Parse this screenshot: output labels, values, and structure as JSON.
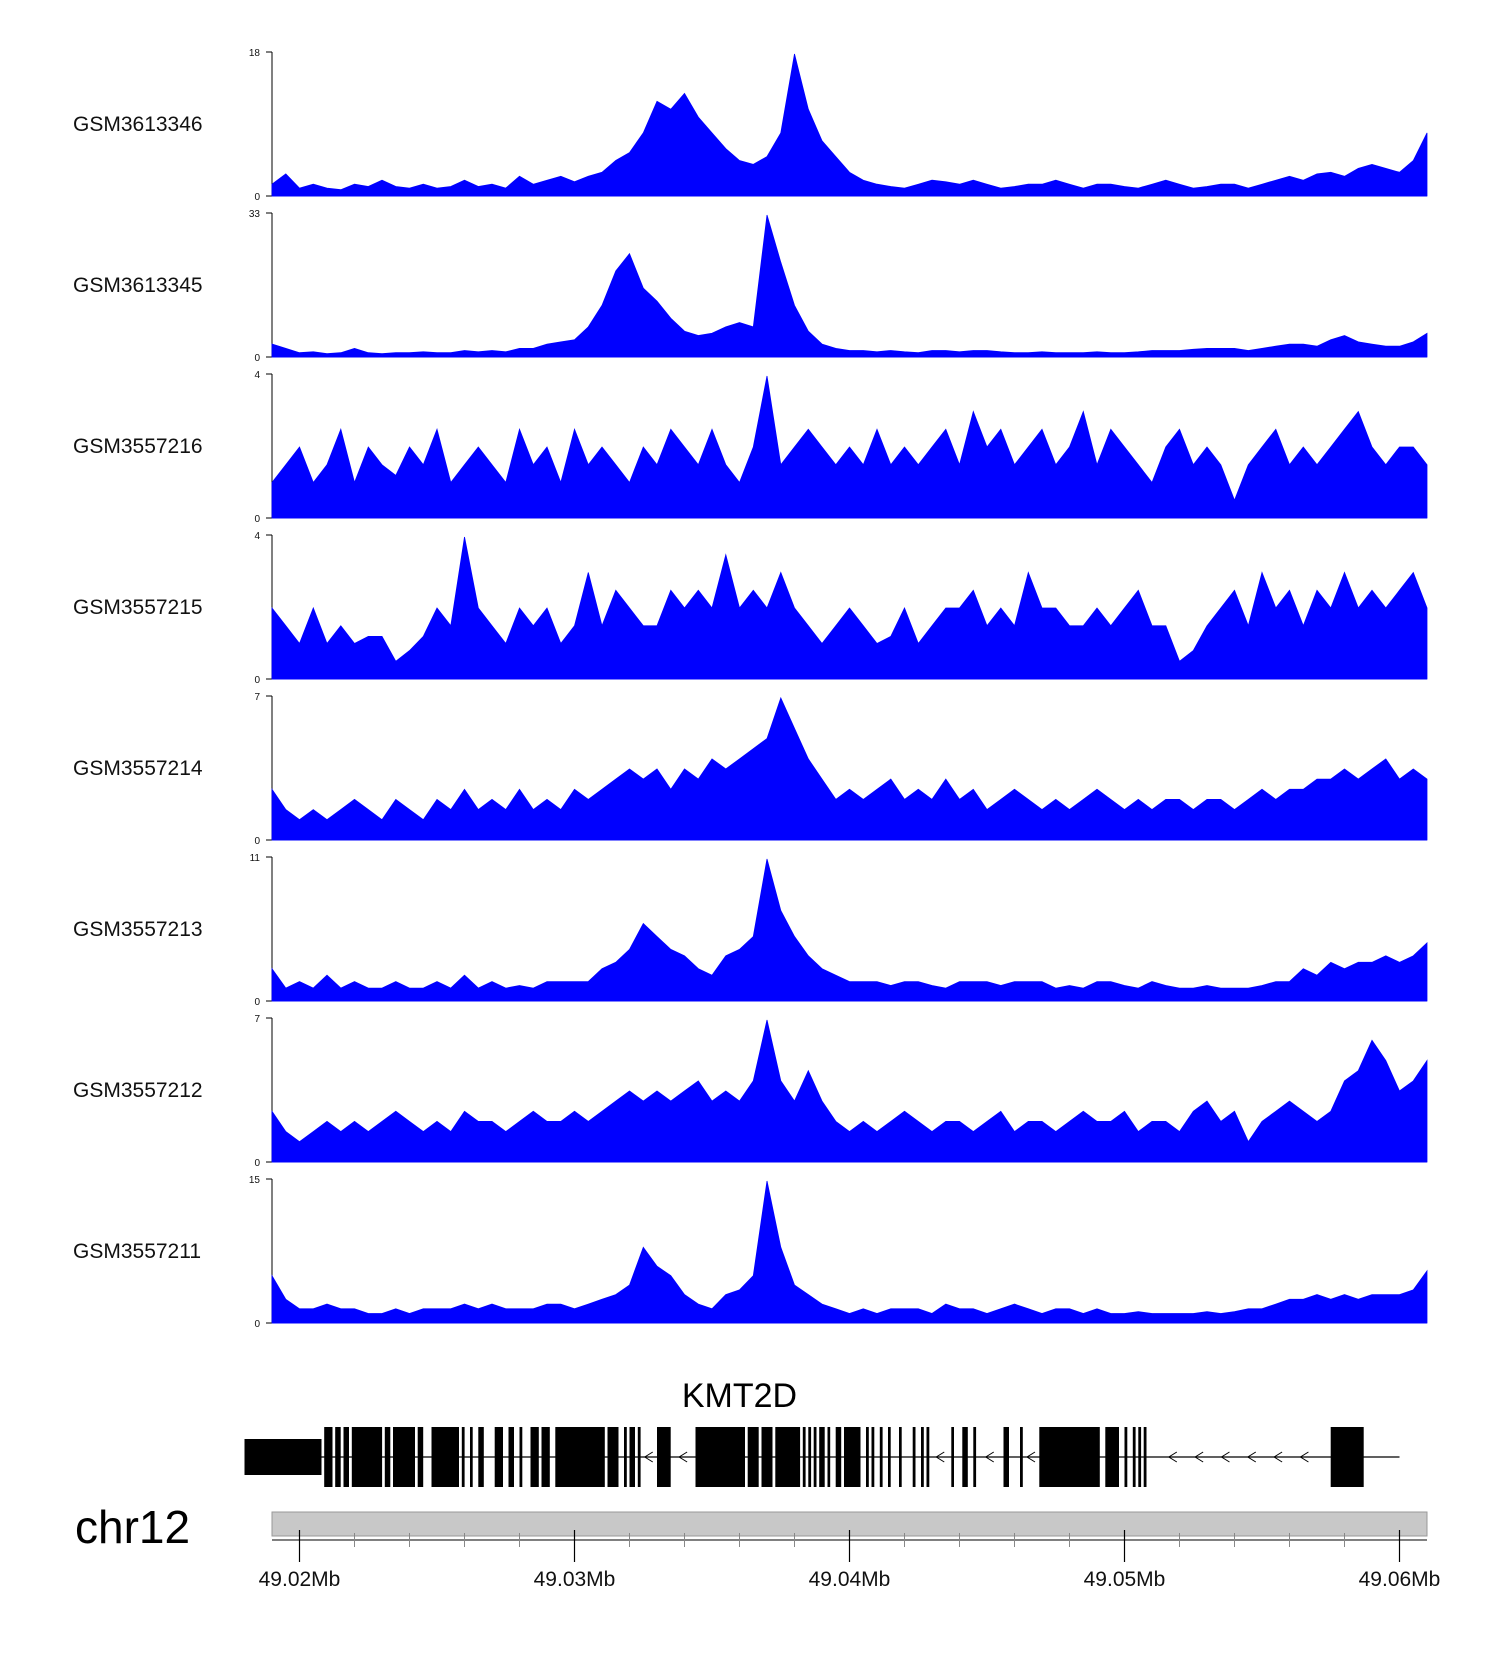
{
  "chart_data": {
    "type": "area",
    "title": "",
    "xlabel": "",
    "ylabel": "",
    "region": {
      "chromosome": "chr12",
      "start_mb": 49.019,
      "end_mb": 49.061
    },
    "fill_color": "#0000ff",
    "series": [
      {
        "name": "GSM3613346",
        "ylim": [
          0,
          18
        ],
        "ymax_label": "18",
        "ymin_label": "0",
        "values": [
          1.5,
          2.8,
          1.0,
          1.5,
          1.0,
          0.8,
          1.5,
          1.2,
          2.0,
          1.2,
          1.0,
          1.5,
          1.0,
          1.2,
          2.0,
          1.2,
          1.5,
          1.0,
          2.5,
          1.5,
          2.0,
          2.5,
          1.8,
          2.5,
          3.0,
          4.5,
          5.5,
          8.0,
          12.0,
          11.0,
          13.0,
          10.0,
          8.0,
          6.0,
          4.5,
          4.0,
          5.0,
          8.0,
          18.0,
          11.0,
          7.0,
          5.0,
          3.0,
          2.0,
          1.5,
          1.2,
          1.0,
          1.5,
          2.0,
          1.8,
          1.5,
          2.0,
          1.5,
          1.0,
          1.2,
          1.5,
          1.5,
          2.0,
          1.5,
          1.0,
          1.5,
          1.5,
          1.2,
          1.0,
          1.5,
          2.0,
          1.5,
          1.0,
          1.2,
          1.5,
          1.5,
          1.0,
          1.5,
          2.0,
          2.5,
          2.0,
          2.8,
          3.0,
          2.5,
          3.5,
          4.0,
          3.5,
          3.0,
          4.5,
          8.0
        ]
      },
      {
        "name": "GSM3613345",
        "ylim": [
          0,
          33
        ],
        "ymax_label": "33",
        "ymin_label": "0",
        "values": [
          3.0,
          2.0,
          1.0,
          1.2,
          0.8,
          1.0,
          2.0,
          1.0,
          0.8,
          1.0,
          1.0,
          1.2,
          1.0,
          1.0,
          1.5,
          1.2,
          1.5,
          1.2,
          2.0,
          2.0,
          3.0,
          3.5,
          4.0,
          7.0,
          12.0,
          20.0,
          24.0,
          16.0,
          13.0,
          9.0,
          6.0,
          5.0,
          5.5,
          7.0,
          8.0,
          7.0,
          33.0,
          22.0,
          12.0,
          6.0,
          3.0,
          2.0,
          1.5,
          1.5,
          1.2,
          1.5,
          1.2,
          1.0,
          1.5,
          1.5,
          1.2,
          1.5,
          1.5,
          1.2,
          1.0,
          1.0,
          1.2,
          1.0,
          1.0,
          1.0,
          1.2,
          1.0,
          1.0,
          1.2,
          1.5,
          1.5,
          1.5,
          1.8,
          2.0,
          2.0,
          2.0,
          1.5,
          2.0,
          2.5,
          3.0,
          3.0,
          2.5,
          4.0,
          5.0,
          3.5,
          3.0,
          2.5,
          2.5,
          3.5,
          5.5
        ]
      },
      {
        "name": "GSM3557216",
        "ylim": [
          0,
          4
        ],
        "ymax_label": "4",
        "ymin_label": "0",
        "values": [
          1.0,
          1.5,
          2.0,
          1.0,
          1.5,
          2.5,
          1.0,
          2.0,
          1.5,
          1.2,
          2.0,
          1.5,
          2.5,
          1.0,
          1.5,
          2.0,
          1.5,
          1.0,
          2.5,
          1.5,
          2.0,
          1.0,
          2.5,
          1.5,
          2.0,
          1.5,
          1.0,
          2.0,
          1.5,
          2.5,
          2.0,
          1.5,
          2.5,
          1.5,
          1.0,
          2.0,
          4.0,
          1.5,
          2.0,
          2.5,
          2.0,
          1.5,
          2.0,
          1.5,
          2.5,
          1.5,
          2.0,
          1.5,
          2.0,
          2.5,
          1.5,
          3.0,
          2.0,
          2.5,
          1.5,
          2.0,
          2.5,
          1.5,
          2.0,
          3.0,
          1.5,
          2.5,
          2.0,
          1.5,
          1.0,
          2.0,
          2.5,
          1.5,
          2.0,
          1.5,
          0.5,
          1.5,
          2.0,
          2.5,
          1.5,
          2.0,
          1.5,
          2.0,
          2.5,
          3.0,
          2.0,
          1.5,
          2.0,
          2.0,
          1.5
        ]
      },
      {
        "name": "GSM3557215",
        "ylim": [
          0,
          4
        ],
        "ymax_label": "4",
        "ymin_label": "0",
        "values": [
          2.0,
          1.5,
          1.0,
          2.0,
          1.0,
          1.5,
          1.0,
          1.2,
          1.2,
          0.5,
          0.8,
          1.2,
          2.0,
          1.5,
          4.0,
          2.0,
          1.5,
          1.0,
          2.0,
          1.5,
          2.0,
          1.0,
          1.5,
          3.0,
          1.5,
          2.5,
          2.0,
          1.5,
          1.5,
          2.5,
          2.0,
          2.5,
          2.0,
          3.5,
          2.0,
          2.5,
          2.0,
          3.0,
          2.0,
          1.5,
          1.0,
          1.5,
          2.0,
          1.5,
          1.0,
          1.2,
          2.0,
          1.0,
          1.5,
          2.0,
          2.0,
          2.5,
          1.5,
          2.0,
          1.5,
          3.0,
          2.0,
          2.0,
          1.5,
          1.5,
          2.0,
          1.5,
          2.0,
          2.5,
          1.5,
          1.5,
          0.5,
          0.8,
          1.5,
          2.0,
          2.5,
          1.5,
          3.0,
          2.0,
          2.5,
          1.5,
          2.5,
          2.0,
          3.0,
          2.0,
          2.5,
          2.0,
          2.5,
          3.0,
          2.0
        ]
      },
      {
        "name": "GSM3557214",
        "ylim": [
          0,
          7
        ],
        "ymax_label": "7",
        "ymin_label": "0",
        "values": [
          2.5,
          1.5,
          1.0,
          1.5,
          1.0,
          1.5,
          2.0,
          1.5,
          1.0,
          2.0,
          1.5,
          1.0,
          2.0,
          1.5,
          2.5,
          1.5,
          2.0,
          1.5,
          2.5,
          1.5,
          2.0,
          1.5,
          2.5,
          2.0,
          2.5,
          3.0,
          3.5,
          3.0,
          3.5,
          2.5,
          3.5,
          3.0,
          4.0,
          3.5,
          4.0,
          4.5,
          5.0,
          7.0,
          5.5,
          4.0,
          3.0,
          2.0,
          2.5,
          2.0,
          2.5,
          3.0,
          2.0,
          2.5,
          2.0,
          3.0,
          2.0,
          2.5,
          1.5,
          2.0,
          2.5,
          2.0,
          1.5,
          2.0,
          1.5,
          2.0,
          2.5,
          2.0,
          1.5,
          2.0,
          1.5,
          2.0,
          2.0,
          1.5,
          2.0,
          2.0,
          1.5,
          2.0,
          2.5,
          2.0,
          2.5,
          2.5,
          3.0,
          3.0,
          3.5,
          3.0,
          3.5,
          4.0,
          3.0,
          3.5,
          3.0
        ]
      },
      {
        "name": "GSM3557213",
        "ylim": [
          0,
          11
        ],
        "ymax_label": "11",
        "ymin_label": "0",
        "values": [
          2.5,
          1.0,
          1.5,
          1.0,
          2.0,
          1.0,
          1.5,
          1.0,
          1.0,
          1.5,
          1.0,
          1.0,
          1.5,
          1.0,
          2.0,
          1.0,
          1.5,
          1.0,
          1.2,
          1.0,
          1.5,
          1.5,
          1.5,
          1.5,
          2.5,
          3.0,
          4.0,
          6.0,
          5.0,
          4.0,
          3.5,
          2.5,
          2.0,
          3.5,
          4.0,
          5.0,
          11.0,
          7.0,
          5.0,
          3.5,
          2.5,
          2.0,
          1.5,
          1.5,
          1.5,
          1.2,
          1.5,
          1.5,
          1.2,
          1.0,
          1.5,
          1.5,
          1.5,
          1.2,
          1.5,
          1.5,
          1.5,
          1.0,
          1.2,
          1.0,
          1.5,
          1.5,
          1.2,
          1.0,
          1.5,
          1.2,
          1.0,
          1.0,
          1.2,
          1.0,
          1.0,
          1.0,
          1.2,
          1.5,
          1.5,
          2.5,
          2.0,
          3.0,
          2.5,
          3.0,
          3.0,
          3.5,
          3.0,
          3.5,
          4.5
        ]
      },
      {
        "name": "GSM3557212",
        "ylim": [
          0,
          7
        ],
        "ymax_label": "7",
        "ymin_label": "0",
        "values": [
          2.5,
          1.5,
          1.0,
          1.5,
          2.0,
          1.5,
          2.0,
          1.5,
          2.0,
          2.5,
          2.0,
          1.5,
          2.0,
          1.5,
          2.5,
          2.0,
          2.0,
          1.5,
          2.0,
          2.5,
          2.0,
          2.0,
          2.5,
          2.0,
          2.5,
          3.0,
          3.5,
          3.0,
          3.5,
          3.0,
          3.5,
          4.0,
          3.0,
          3.5,
          3.0,
          4.0,
          7.0,
          4.0,
          3.0,
          4.5,
          3.0,
          2.0,
          1.5,
          2.0,
          1.5,
          2.0,
          2.5,
          2.0,
          1.5,
          2.0,
          2.0,
          1.5,
          2.0,
          2.5,
          1.5,
          2.0,
          2.0,
          1.5,
          2.0,
          2.5,
          2.0,
          2.0,
          2.5,
          1.5,
          2.0,
          2.0,
          1.5,
          2.5,
          3.0,
          2.0,
          2.5,
          1.0,
          2.0,
          2.5,
          3.0,
          2.5,
          2.0,
          2.5,
          4.0,
          4.5,
          6.0,
          5.0,
          3.5,
          4.0,
          5.0
        ]
      },
      {
        "name": "GSM3557211",
        "ylim": [
          0,
          15
        ],
        "ymax_label": "15",
        "ymin_label": "0",
        "values": [
          5.0,
          2.5,
          1.5,
          1.5,
          2.0,
          1.5,
          1.5,
          1.0,
          1.0,
          1.5,
          1.0,
          1.5,
          1.5,
          1.5,
          2.0,
          1.5,
          2.0,
          1.5,
          1.5,
          1.5,
          2.0,
          2.0,
          1.5,
          2.0,
          2.5,
          3.0,
          4.0,
          8.0,
          6.0,
          5.0,
          3.0,
          2.0,
          1.5,
          3.0,
          3.5,
          5.0,
          15.0,
          8.0,
          4.0,
          3.0,
          2.0,
          1.5,
          1.0,
          1.5,
          1.0,
          1.5,
          1.5,
          1.5,
          1.0,
          2.0,
          1.5,
          1.5,
          1.0,
          1.5,
          2.0,
          1.5,
          1.0,
          1.5,
          1.5,
          1.0,
          1.5,
          1.0,
          1.0,
          1.2,
          1.0,
          1.0,
          1.0,
          1.0,
          1.2,
          1.0,
          1.2,
          1.5,
          1.5,
          2.0,
          2.5,
          2.5,
          3.0,
          2.5,
          3.0,
          2.5,
          3.0,
          3.0,
          3.0,
          3.5,
          5.5
        ]
      }
    ],
    "gene": {
      "name": "KMT2D",
      "strand": "-",
      "start_mb": 49.018,
      "end_mb": 49.06,
      "exons_mb": [
        [
          49.018,
          49.0208
        ],
        [
          49.0209,
          49.0212
        ],
        [
          49.0213,
          49.0215
        ],
        [
          49.0216,
          49.0218
        ],
        [
          49.0219,
          49.023
        ],
        [
          49.0231,
          49.0233
        ],
        [
          49.0234,
          49.0242
        ],
        [
          49.0243,
          49.0245
        ],
        [
          49.0248,
          49.0258
        ],
        [
          49.0259,
          49.026
        ],
        [
          49.0262,
          49.0263
        ],
        [
          49.0265,
          49.0267
        ],
        [
          49.0271,
          49.0274
        ],
        [
          49.0276,
          49.0278
        ],
        [
          49.028,
          49.0281
        ],
        [
          49.0284,
          49.0287
        ],
        [
          49.0288,
          49.0291
        ],
        [
          49.0293,
          49.0311
        ],
        [
          49.0312,
          49.0316
        ],
        [
          49.0318,
          49.0319
        ],
        [
          49.032,
          49.0322
        ],
        [
          49.0323,
          49.0324
        ],
        [
          49.033,
          49.0335
        ],
        [
          49.0344,
          49.0362
        ],
        [
          49.0363,
          49.0367
        ],
        [
          49.0368,
          49.0372
        ],
        [
          49.0373,
          49.0382
        ],
        [
          49.0383,
          49.0384
        ],
        [
          49.0385,
          49.0386
        ],
        [
          49.0387,
          49.0388
        ],
        [
          49.0389,
          49.0391
        ],
        [
          49.0392,
          49.0393
        ],
        [
          49.0395,
          49.0397
        ],
        [
          49.0398,
          49.0404
        ],
        [
          49.0406,
          49.0407
        ],
        [
          49.0408,
          49.0409
        ],
        [
          49.0411,
          49.0412
        ],
        [
          49.0414,
          49.0415
        ],
        [
          49.0418,
          49.0419
        ],
        [
          49.0423,
          49.0424
        ],
        [
          49.0426,
          49.0427
        ],
        [
          49.0428,
          49.0429
        ],
        [
          49.0437,
          49.0438
        ],
        [
          49.0441,
          49.0443
        ],
        [
          49.0445,
          49.0446
        ],
        [
          49.0456,
          49.0458
        ],
        [
          49.0462,
          49.0463
        ],
        [
          49.0469,
          49.0491
        ],
        [
          49.0493,
          49.0498
        ],
        [
          49.05,
          49.0501
        ],
        [
          49.0503,
          49.0504
        ],
        [
          49.0505,
          49.0506
        ],
        [
          49.0507,
          49.0508
        ],
        [
          49.0575,
          49.0587
        ]
      ]
    },
    "axis": {
      "chromosome_label": "chr12",
      "ticks_mb": [
        49.02,
        49.03,
        49.04,
        49.05,
        49.06
      ],
      "tick_labels": [
        "49.02Mb",
        "49.03Mb",
        "49.04Mb",
        "49.05Mb",
        "49.06Mb"
      ],
      "minor_step_mb": 0.002
    }
  }
}
